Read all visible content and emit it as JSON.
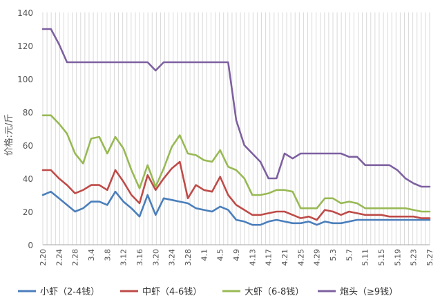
{
  "chart_data": {
    "type": "line",
    "ylabel": "价格:元/斤",
    "xlabel": "",
    "title": "",
    "ylim": [
      0,
      140
    ],
    "yticks": [
      0,
      20,
      40,
      60,
      80,
      100,
      120,
      140
    ],
    "grid": "vertical lines at each date",
    "legend_position": "bottom",
    "x_ticks": [
      "2.20",
      "2.24",
      "2.28",
      "3.4",
      "3.8",
      "3.12",
      "3.16",
      "3.20",
      "3.24",
      "3.28",
      "4.1",
      "4.5",
      "4.9",
      "4.13",
      "4.17",
      "4.21",
      "4.25",
      "4.29",
      "5.3",
      "5.7",
      "5.11",
      "5.15",
      "5.19",
      "5.23",
      "5.27"
    ],
    "x": [
      "2.20",
      "2.22",
      "2.24",
      "2.26",
      "2.28",
      "3.2",
      "3.4",
      "3.6",
      "3.8",
      "3.10",
      "3.12",
      "3.14",
      "3.16",
      "3.18",
      "3.20",
      "3.22",
      "3.24",
      "3.26",
      "3.28",
      "3.30",
      "4.1",
      "4.3",
      "4.5",
      "4.7",
      "4.9",
      "4.11",
      "4.13",
      "4.15",
      "4.17",
      "4.19",
      "4.21",
      "4.23",
      "4.25",
      "4.27",
      "4.29",
      "5.1",
      "5.3",
      "5.5",
      "5.7",
      "5.9",
      "5.11",
      "5.13",
      "5.15",
      "5.17",
      "5.19",
      "5.21",
      "5.23",
      "5.25",
      "5.27"
    ],
    "series": [
      {
        "name": "小虾（2-4钱）",
        "color": "#4a7ebb",
        "values": [
          30,
          32,
          28,
          24,
          20,
          22,
          26,
          26,
          24,
          32,
          26,
          22,
          17,
          30,
          18,
          28,
          27,
          26,
          25,
          22,
          21,
          20,
          23,
          21,
          15,
          14,
          12,
          12,
          14,
          15,
          14,
          13,
          13,
          14,
          12,
          14,
          13,
          13,
          14,
          15,
          15,
          15,
          15,
          15,
          15,
          15,
          15,
          15,
          15
        ]
      },
      {
        "name": "中虾（4-6钱）",
        "color": "#be4b48",
        "values": [
          45,
          45,
          40,
          36,
          31,
          33,
          36,
          36,
          33,
          45,
          38,
          30,
          25,
          42,
          33,
          40,
          46,
          50,
          28,
          36,
          33,
          32,
          41,
          30,
          24,
          21,
          18,
          18,
          19,
          20,
          20,
          18,
          16,
          17,
          15,
          21,
          20,
          18,
          20,
          19,
          18,
          18,
          18,
          17,
          17,
          17,
          17,
          16,
          16
        ]
      },
      {
        "name": "大虾（6-8钱）",
        "color": "#98b954",
        "values": [
          78,
          78,
          73,
          67,
          55,
          49,
          64,
          65,
          55,
          65,
          58,
          45,
          34,
          48,
          35,
          46,
          59,
          66,
          55,
          54,
          51,
          50,
          57,
          47,
          45,
          40,
          30,
          30,
          31,
          33,
          33,
          32,
          22,
          22,
          22,
          28,
          28,
          25,
          26,
          25,
          22,
          22,
          22,
          22,
          22,
          22,
          21,
          20,
          20
        ]
      },
      {
        "name": "炮头（≥9钱）",
        "color": "#7d60a0",
        "values": [
          130,
          130,
          121,
          110,
          110,
          110,
          110,
          110,
          110,
          110,
          110,
          110,
          110,
          110,
          105,
          110,
          110,
          110,
          110,
          110,
          110,
          110,
          110,
          110,
          75,
          60,
          55,
          50,
          40,
          40,
          55,
          52,
          55,
          55,
          55,
          55,
          55,
          55,
          53,
          53,
          48,
          48,
          48,
          48,
          45,
          40,
          37,
          35,
          35
        ]
      }
    ]
  },
  "legend": [
    {
      "label": "小虾（2-4钱）",
      "color": "#4a7ebb"
    },
    {
      "label": "中虾（4-6钱）",
      "color": "#be4b48"
    },
    {
      "label": "大虾（6-8钱）",
      "color": "#98b954"
    },
    {
      "label": "炮头（≥9钱）",
      "color": "#7d60a0"
    }
  ]
}
